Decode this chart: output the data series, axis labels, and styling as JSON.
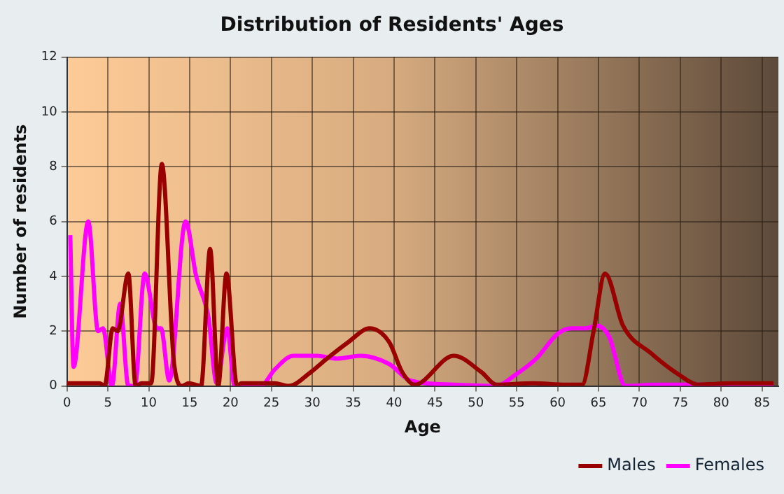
{
  "chart_data": {
    "type": "line",
    "title": "Distribution of Residents' Ages",
    "xlabel": "Age",
    "ylabel": "Number of residents",
    "xlim": [
      0,
      87
    ],
    "xticks": [
      0,
      5,
      10,
      15,
      20,
      25,
      30,
      35,
      40,
      45,
      50,
      55,
      60,
      65,
      70,
      75,
      80,
      85
    ],
    "ylim": [
      0,
      12
    ],
    "yticks": [
      0,
      2,
      4,
      6,
      8,
      10,
      12
    ],
    "grid": true,
    "legend": "bottom right",
    "marker": "none",
    "line_style": "solid",
    "series": [
      {
        "name": "Males",
        "color": "#990000",
        "x": [
          0,
          2,
          4,
          4.6,
          5.6,
          6.2,
          7.5,
          8.4,
          9.1,
          10.3,
          11.6,
          13.1,
          14.1,
          14.9,
          16.4,
          17.5,
          18.5,
          19.5,
          20.8,
          21.3,
          25.4,
          27.1,
          29.8,
          31.8,
          34.4,
          37,
          39.4,
          41,
          42.5,
          47.3,
          50.7,
          52.5,
          57,
          61,
          63,
          64.4,
          65.8,
          68,
          71.4,
          74.9,
          77.2,
          81.2,
          86.4
        ],
        "values": [
          0.1,
          0.1,
          0.1,
          0,
          2.1,
          2,
          4.1,
          0,
          0.1,
          0.1,
          8.1,
          0.8,
          0,
          0.1,
          0,
          5,
          0,
          4.1,
          0,
          0.1,
          0.1,
          0,
          0.5,
          1,
          1.6,
          2.1,
          1.6,
          0.5,
          0.05,
          1.1,
          0.5,
          0.05,
          0.1,
          0.05,
          0.05,
          2,
          4.1,
          2.2,
          1.2,
          0.4,
          0.05,
          0.1,
          0.1
        ]
      },
      {
        "name": "Females",
        "color": "#ff00ff",
        "x": [
          0.4,
          0.8,
          2.6,
          3.8,
          4.4,
          5.5,
          6.5,
          7.5,
          8.3,
          9.5,
          11,
          11.5,
          12.5,
          14.5,
          15.8,
          17.3,
          18.3,
          19.6,
          20.5,
          23.7,
          25.4,
          27.7,
          30.6,
          33,
          35.9,
          39.4,
          42,
          47.3,
          52.5,
          54.8,
          57.4,
          60,
          61.7,
          63.4,
          64.8,
          66.3,
          68.3,
          72,
          75.5,
          81.2,
          86.4
        ],
        "values": [
          5.5,
          0.7,
          6,
          2,
          2.1,
          0,
          3,
          0,
          0,
          4.1,
          2.1,
          2.1,
          0.2,
          6,
          4,
          2.5,
          0.1,
          2.1,
          0,
          0,
          0.6,
          1.1,
          1.1,
          1,
          1.1,
          0.8,
          0.2,
          0.05,
          0,
          0.4,
          1,
          1.9,
          2.1,
          2.1,
          2.2,
          1.8,
          0,
          0.05,
          0.05,
          0.05,
          0.05
        ]
      }
    ]
  }
}
